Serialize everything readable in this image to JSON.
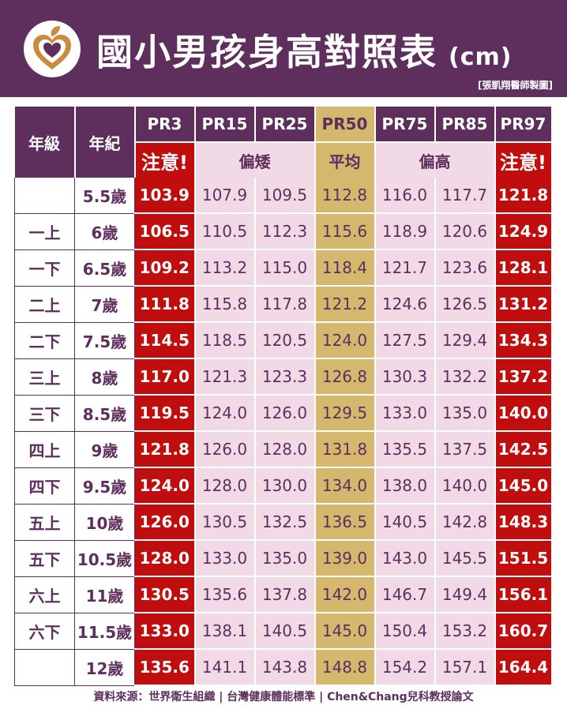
{
  "header": {
    "title": "國小男孩身高對照表",
    "unit": "(cm)",
    "credit": "[張凱翔醫師製圖]",
    "logo_icon": "heart-leaf-icon",
    "bg_color": "#5e2f5c"
  },
  "table": {
    "col_grade": "年級",
    "col_age": "年紀",
    "percentiles": [
      "PR3",
      "PR15",
      "PR25",
      "PR50",
      "PR75",
      "PR85",
      "PR97"
    ],
    "categories": {
      "warn_low": "注意!",
      "short": "偏矮",
      "average": "平均",
      "tall": "偏高",
      "warn_high": "注意!"
    },
    "rows": [
      {
        "grade": "",
        "age": "5.5歲",
        "values": [
          "103.9",
          "107.9",
          "109.5",
          "112.8",
          "116.0",
          "117.7",
          "121.8"
        ]
      },
      {
        "grade": "一上",
        "age": "6歲",
        "values": [
          "106.5",
          "110.5",
          "112.3",
          "115.6",
          "118.9",
          "120.6",
          "124.9"
        ]
      },
      {
        "grade": "一下",
        "age": "6.5歲",
        "values": [
          "109.2",
          "113.2",
          "115.0",
          "118.4",
          "121.7",
          "123.6",
          "128.1"
        ]
      },
      {
        "grade": "二上",
        "age": "7歲",
        "values": [
          "111.8",
          "115.8",
          "117.8",
          "121.2",
          "124.6",
          "126.5",
          "131.2"
        ]
      },
      {
        "grade": "二下",
        "age": "7.5歲",
        "values": [
          "114.5",
          "118.5",
          "120.5",
          "124.0",
          "127.5",
          "129.4",
          "134.3"
        ]
      },
      {
        "grade": "三上",
        "age": "8歲",
        "values": [
          "117.0",
          "121.3",
          "123.3",
          "126.8",
          "130.3",
          "132.2",
          "137.2"
        ]
      },
      {
        "grade": "三下",
        "age": "8.5歲",
        "values": [
          "119.5",
          "124.0",
          "126.0",
          "129.5",
          "133.0",
          "135.0",
          "140.0"
        ]
      },
      {
        "grade": "四上",
        "age": "9歲",
        "values": [
          "121.8",
          "126.0",
          "128.0",
          "131.8",
          "135.5",
          "137.5",
          "142.5"
        ]
      },
      {
        "grade": "四下",
        "age": "9.5歲",
        "values": [
          "124.0",
          "128.0",
          "130.0",
          "134.0",
          "138.0",
          "140.0",
          "145.0"
        ]
      },
      {
        "grade": "五上",
        "age": "10歲",
        "values": [
          "126.0",
          "130.5",
          "132.5",
          "136.5",
          "140.5",
          "142.8",
          "148.3"
        ]
      },
      {
        "grade": "五下",
        "age": "10.5歲",
        "values": [
          "128.0",
          "133.0",
          "135.0",
          "139.0",
          "143.0",
          "145.5",
          "151.5"
        ]
      },
      {
        "grade": "六上",
        "age": "11歲",
        "values": [
          "130.5",
          "135.6",
          "137.8",
          "142.0",
          "146.7",
          "149.4",
          "156.1"
        ]
      },
      {
        "grade": "六下",
        "age": "11.5歲",
        "values": [
          "133.0",
          "138.1",
          "140.5",
          "145.0",
          "150.4",
          "153.2",
          "160.7"
        ]
      },
      {
        "grade": "",
        "age": "12歲",
        "values": [
          "135.6",
          "141.1",
          "143.8",
          "148.8",
          "154.2",
          "157.1",
          "164.4"
        ]
      }
    ]
  },
  "footer": {
    "source": "資料來源：世界衛生組織 | 台灣健康體能標準 | Chen&Chang兒科教授論文"
  }
}
